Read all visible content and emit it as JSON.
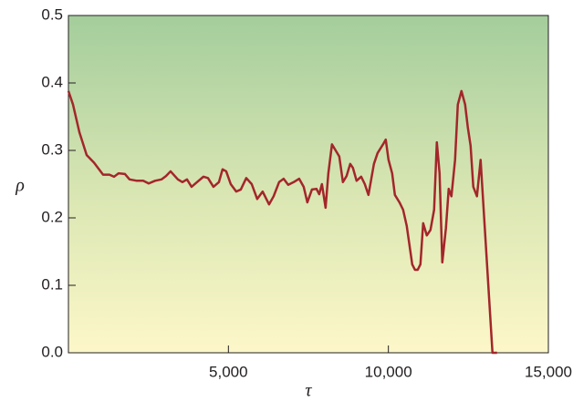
{
  "chart_data": {
    "type": "line",
    "xlabel": "τ",
    "ylabel": "ρ",
    "x": [
      0,
      143,
      342,
      570,
      798,
      1083,
      1283,
      1425,
      1568,
      1767,
      1910,
      2138,
      2337,
      2508,
      2708,
      2907,
      3050,
      3192,
      3420,
      3563,
      3705,
      3848,
      4019,
      4218,
      4361,
      4532,
      4703,
      4817,
      4931,
      5073,
      5244,
      5387,
      5558,
      5729,
      5900,
      6070,
      6270,
      6413,
      6584,
      6726,
      6869,
      7040,
      7211,
      7353,
      7467,
      7610,
      7752,
      7838,
      7923,
      8037,
      8123,
      8237,
      8351,
      8465,
      8579,
      8693,
      8807,
      8892,
      9006,
      9149,
      9263,
      9377,
      9548,
      9662,
      9833,
      9918,
      10004,
      10118,
      10203,
      10346,
      10460,
      10574,
      10631,
      10745,
      10830,
      10916,
      11001,
      11087,
      11201,
      11315,
      11429,
      11514,
      11600,
      11685,
      11799,
      11885,
      11970,
      12084,
      12170,
      12284,
      12398,
      12483,
      12569,
      12654,
      12768,
      12882,
      13253,
      13395
    ],
    "series": [
      {
        "color": "#a3262a",
        "values": [
          0.388,
          0.368,
          0.327,
          0.293,
          0.282,
          0.264,
          0.264,
          0.261,
          0.266,
          0.265,
          0.257,
          0.255,
          0.255,
          0.251,
          0.255,
          0.257,
          0.262,
          0.269,
          0.257,
          0.253,
          0.257,
          0.246,
          0.253,
          0.261,
          0.259,
          0.246,
          0.253,
          0.272,
          0.269,
          0.25,
          0.239,
          0.242,
          0.259,
          0.25,
          0.228,
          0.239,
          0.22,
          0.232,
          0.253,
          0.258,
          0.249,
          0.253,
          0.258,
          0.246,
          0.223,
          0.242,
          0.243,
          0.235,
          0.25,
          0.215,
          0.266,
          0.309,
          0.3,
          0.291,
          0.253,
          0.262,
          0.28,
          0.274,
          0.255,
          0.261,
          0.25,
          0.234,
          0.28,
          0.296,
          0.309,
          0.316,
          0.286,
          0.266,
          0.234,
          0.223,
          0.212,
          0.188,
          0.169,
          0.131,
          0.123,
          0.123,
          0.131,
          0.192,
          0.174,
          0.182,
          0.212,
          0.312,
          0.266,
          0.134,
          0.185,
          0.243,
          0.232,
          0.286,
          0.368,
          0.388,
          0.368,
          0.334,
          0.307,
          0.246,
          0.232,
          0.286,
          0.0,
          0.0
        ]
      }
    ],
    "xlim": [
      0,
      15000
    ],
    "xticks": [
      {
        "value": 5000,
        "label": "5,000"
      },
      {
        "value": 10000,
        "label": "10,000"
      },
      {
        "value": 15000,
        "label": "15,000"
      }
    ],
    "ylim": [
      0,
      0.5
    ],
    "yticks": [
      {
        "value": 0,
        "label": "0.0"
      },
      0.1,
      0.2,
      0.3,
      0.4,
      0.5
    ]
  }
}
